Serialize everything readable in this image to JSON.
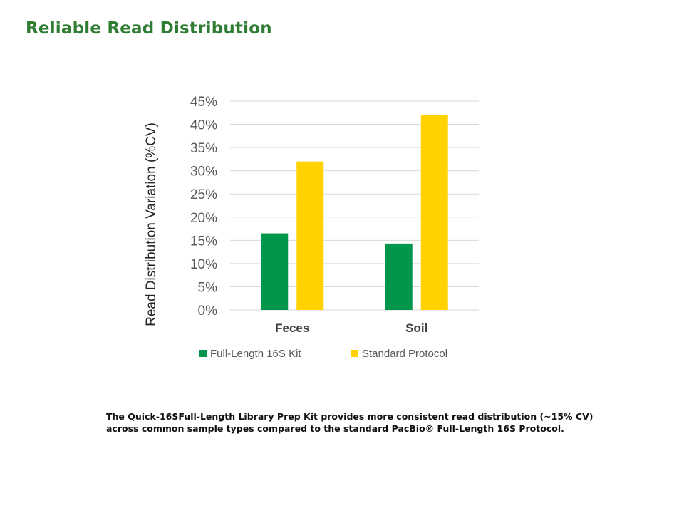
{
  "slide": {
    "title": "Reliable Read Distribution",
    "caption_lines": [
      "The Quick-16SFull-Length Library Prep Kit provides more consistent read distribution (~15% CV)",
      "across common sample types compared to the standard PacBio® Full-Length 16S Protocol."
    ]
  },
  "chart_data": {
    "type": "bar",
    "title": "",
    "xlabel": "",
    "ylabel": "Read Distribution Variation (%CV)",
    "categories": [
      "Feces",
      "Soil"
    ],
    "series": [
      {
        "name": "Full-Length 16S Kit",
        "values": [
          16.5,
          14.3
        ],
        "color": "#00964b"
      },
      {
        "name": "Standard Protocol",
        "values": [
          32,
          42
        ],
        "color": "#ffd200"
      }
    ],
    "ylim": [
      0,
      45
    ],
    "yticks": [
      0,
      5,
      10,
      15,
      20,
      25,
      30,
      35,
      40,
      45
    ],
    "ytick_format": "percent",
    "grid": true,
    "legend": "bottom"
  },
  "colors": {
    "title": "#2e7d32",
    "gridline": "#d9d9d9",
    "axis_text": "#595959",
    "category_text": "#404040"
  }
}
